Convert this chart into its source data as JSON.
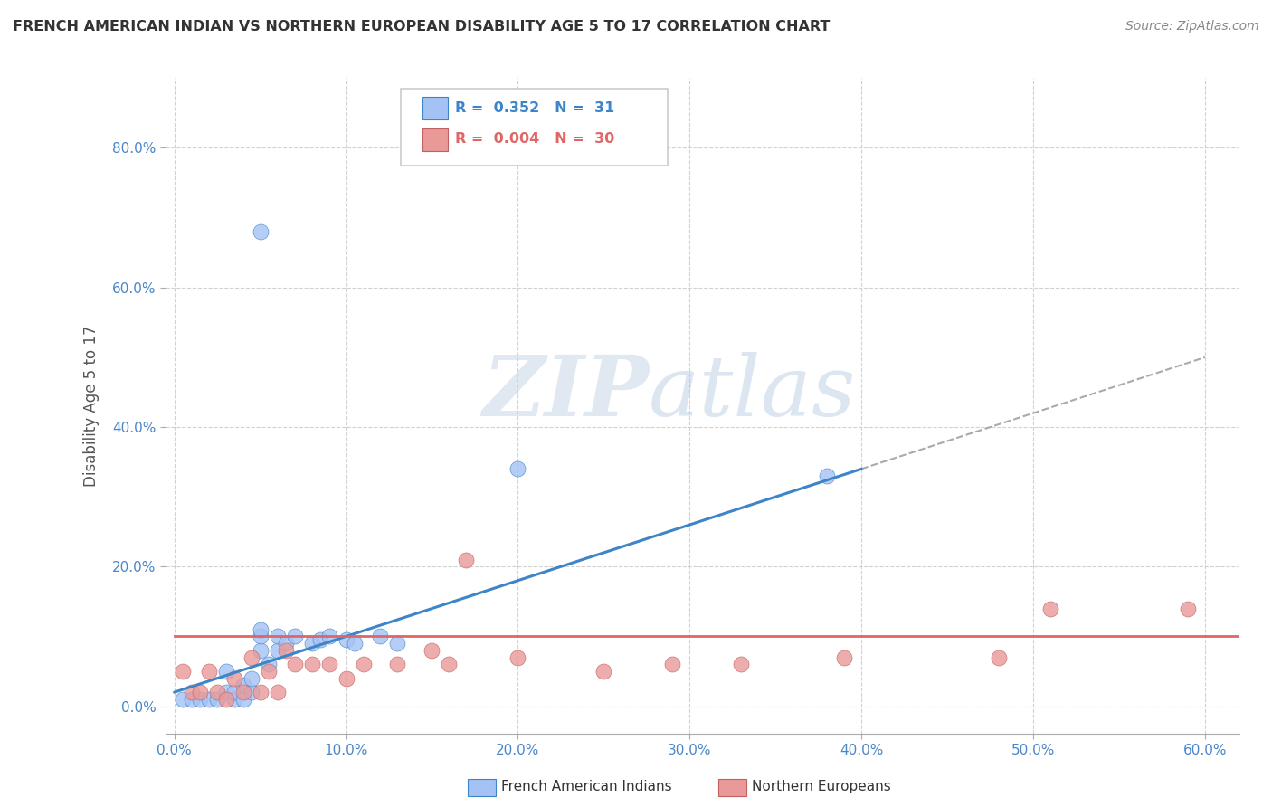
{
  "title": "FRENCH AMERICAN INDIAN VS NORTHERN EUROPEAN DISABILITY AGE 5 TO 17 CORRELATION CHART",
  "source": "Source: ZipAtlas.com",
  "ylabel": "Disability Age 5 to 17",
  "xlim": [
    -0.005,
    0.62
  ],
  "ylim": [
    -0.04,
    0.9
  ],
  "xticks": [
    0.0,
    0.1,
    0.2,
    0.3,
    0.4,
    0.5,
    0.6
  ],
  "yticks": [
    0.0,
    0.2,
    0.4,
    0.6,
    0.8
  ],
  "ytick_labels": [
    "0.0%",
    "20.0%",
    "40.0%",
    "60.0%",
    "80.0%"
  ],
  "xtick_labels": [
    "0.0%",
    "10.0%",
    "20.0%",
    "30.0%",
    "40.0%",
    "50.0%",
    "60.0%"
  ],
  "legend_r1": "R =  0.352",
  "legend_n1": "N =  31",
  "legend_r2": "R =  0.004",
  "legend_n2": "N =  30",
  "color_blue": "#a4c2f4",
  "color_pink": "#ea9999",
  "color_blue_line": "#3d85c8",
  "color_pink_line": "#e06666",
  "color_grid": "#cccccc",
  "watermark_zip": "ZIP",
  "watermark_atlas": "atlas",
  "blue_x": [
    0.005,
    0.01,
    0.015,
    0.02,
    0.025,
    0.03,
    0.03,
    0.035,
    0.035,
    0.04,
    0.04,
    0.045,
    0.045,
    0.05,
    0.05,
    0.05,
    0.055,
    0.06,
    0.06,
    0.065,
    0.07,
    0.08,
    0.085,
    0.09,
    0.1,
    0.105,
    0.12,
    0.13,
    0.2,
    0.38,
    0.05
  ],
  "blue_y": [
    0.01,
    0.01,
    0.01,
    0.01,
    0.01,
    0.02,
    0.05,
    0.01,
    0.02,
    0.01,
    0.03,
    0.02,
    0.04,
    0.08,
    0.1,
    0.11,
    0.06,
    0.08,
    0.1,
    0.09,
    0.1,
    0.09,
    0.095,
    0.1,
    0.095,
    0.09,
    0.1,
    0.09,
    0.34,
    0.33,
    0.68
  ],
  "pink_x": [
    0.005,
    0.01,
    0.015,
    0.02,
    0.025,
    0.03,
    0.035,
    0.04,
    0.045,
    0.05,
    0.055,
    0.06,
    0.065,
    0.07,
    0.08,
    0.09,
    0.1,
    0.11,
    0.13,
    0.15,
    0.16,
    0.17,
    0.2,
    0.25,
    0.29,
    0.33,
    0.39,
    0.48,
    0.51,
    0.59
  ],
  "pink_y": [
    0.05,
    0.02,
    0.02,
    0.05,
    0.02,
    0.01,
    0.04,
    0.02,
    0.07,
    0.02,
    0.05,
    0.02,
    0.08,
    0.06,
    0.06,
    0.06,
    0.04,
    0.06,
    0.06,
    0.08,
    0.06,
    0.21,
    0.07,
    0.05,
    0.06,
    0.06,
    0.07,
    0.07,
    0.14,
    0.14
  ],
  "blue_line_start_x": 0.0,
  "blue_line_end_solid_x": 0.4,
  "blue_line_end_x": 0.6,
  "blue_line_start_y": 0.02,
  "blue_line_end_y": 0.5,
  "pink_line_start_x": 0.0,
  "pink_line_end_x": 0.62,
  "pink_line_y": 0.1
}
